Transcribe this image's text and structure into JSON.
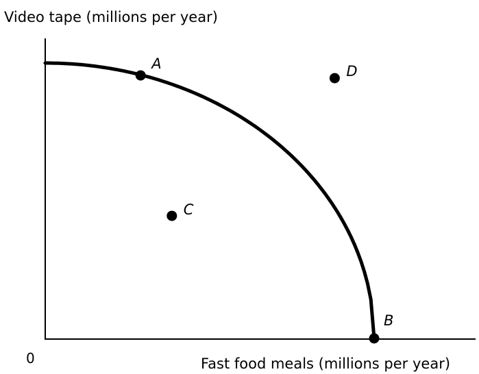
{
  "chart_data": {
    "type": "line",
    "xlabel": "Fast food meals (millions per year)",
    "ylabel": "Video tape (millions per year)",
    "origin_label": "0",
    "grid": false,
    "xlim": [
      0,
      100
    ],
    "ylim": [
      0,
      100
    ],
    "series": [
      {
        "x": [
          0,
          10,
          20,
          30,
          40,
          50,
          60,
          70,
          80,
          85,
          90,
          95,
          100
        ],
        "y": [
          100,
          99.5,
          98,
          95.4,
          91.7,
          86.6,
          80,
          71.4,
          60,
          52.7,
          43.6,
          31.2,
          0
        ]
      }
    ],
    "points": [
      {
        "label": "A",
        "x": 29,
        "y": 95.5
      },
      {
        "label": "B",
        "x": 100,
        "y": 0
      },
      {
        "label": "C",
        "x": 38.5,
        "y": 44.5
      },
      {
        "label": "D",
        "x": 88,
        "y": 94.5
      }
    ],
    "colors": {
      "line": "#000000",
      "points": "#000000"
    }
  }
}
